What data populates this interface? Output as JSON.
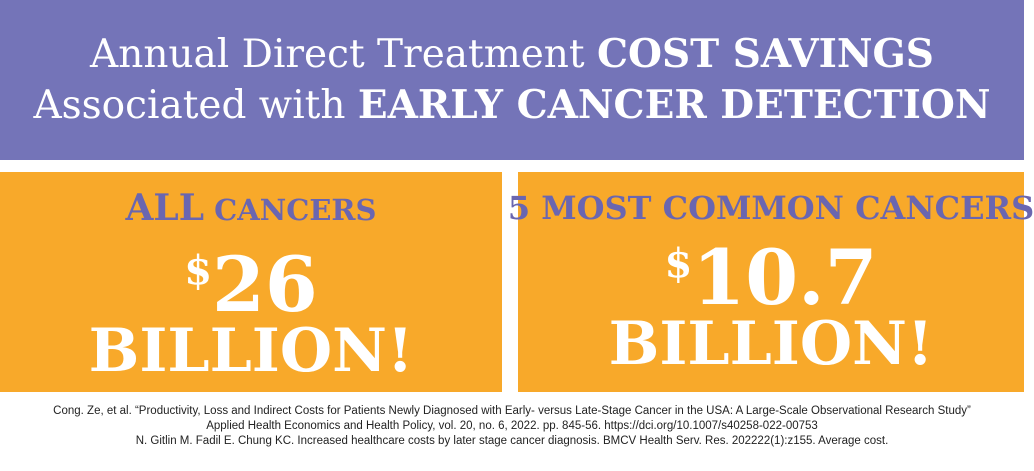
{
  "header": {
    "line1_normal": "Annual Direct Treatment ",
    "line1_bold": "COST SAVINGS",
    "line2_normal": "Associated with ",
    "line2_bold": "EARLY CANCER DETECTION"
  },
  "panels": [
    {
      "title_big": "ALL",
      "title_small": " CANCERS",
      "dollar": "$",
      "amount": "26",
      "unit": "BILLION!"
    },
    {
      "title": "5 MOST COMMON CANCERS",
      "dollar": "$",
      "amount": "10.7",
      "unit": "BILLION!"
    }
  ],
  "references": [
    "Cong. Ze, et al. “Productivity, Loss and Indirect Costs for Patients Newly Diagnosed with Early- versus Late-Stage Cancer in the USA: A Large-Scale Observational Research Study”",
    "Applied Health Economics and Health Policy, vol. 20, no. 6, 2022. pp. 845-56. https://dci.org/10.1007/s40258-022-00753",
    "N. Gitlin M. Fadil E. Chung KC. Increased healthcare costs by later stage cancer diagnosis. BMCV Health Serv. Res. 202222(1):z155. Average cost."
  ],
  "colors": {
    "header_bg": "#7474b8",
    "panel_bg": "#f8a92a",
    "title_text": "#6a66b0",
    "amount_text": "#ffffff"
  }
}
